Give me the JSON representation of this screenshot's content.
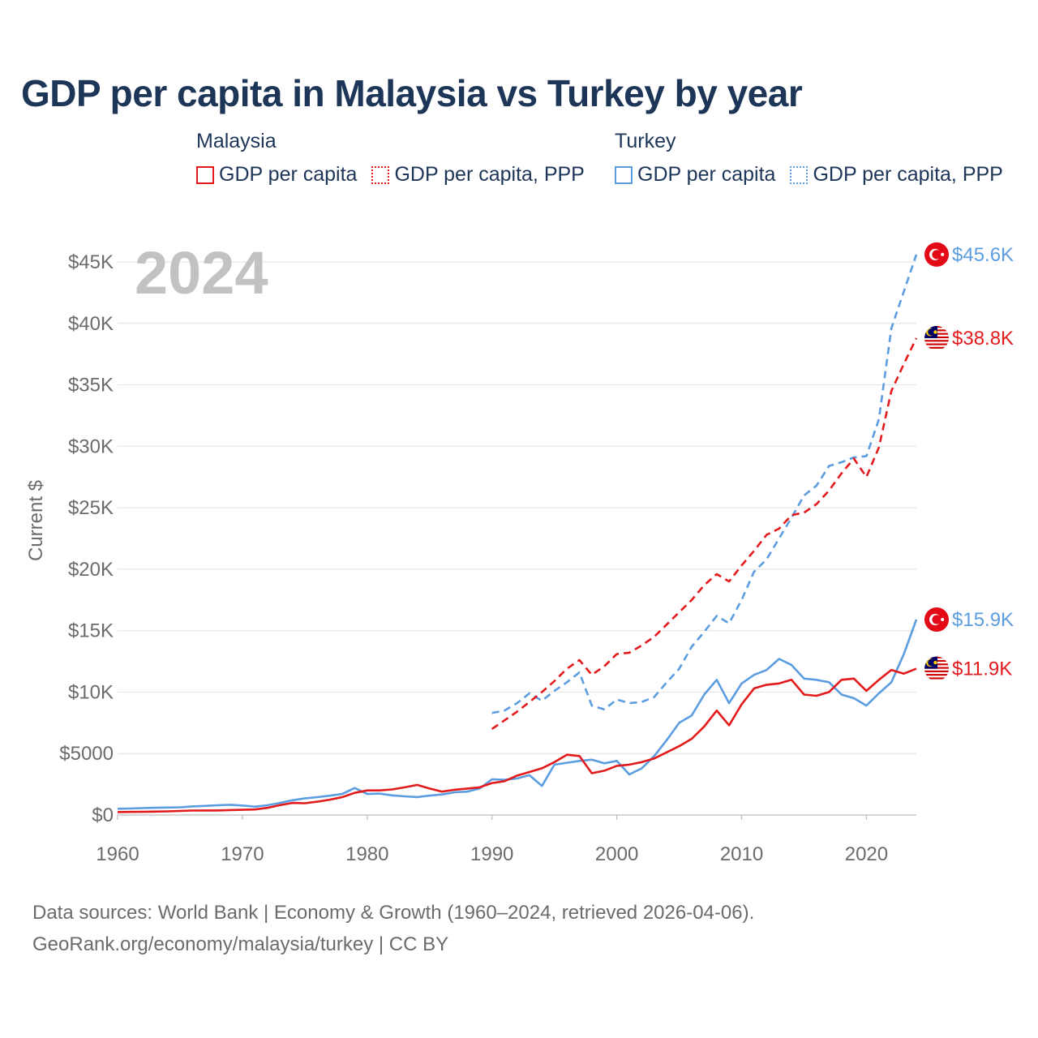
{
  "chart_data": {
    "type": "line",
    "title": "GDP per capita in Malaysia vs Turkey by year",
    "year_label": "2024",
    "ylabel": "Current $",
    "xlabel": "",
    "xlim": [
      1960,
      2024
    ],
    "ylim": [
      0,
      45000
    ],
    "x_ticks": [
      1960,
      1970,
      1980,
      1990,
      2000,
      2010,
      2020
    ],
    "y_ticks": [
      {
        "value": 0,
        "label": "$0"
      },
      {
        "value": 5000,
        "label": "$5000"
      },
      {
        "value": 10000,
        "label": "$10K"
      },
      {
        "value": 15000,
        "label": "$15K"
      },
      {
        "value": 20000,
        "label": "$20K"
      },
      {
        "value": 25000,
        "label": "$25K"
      },
      {
        "value": 30000,
        "label": "$30K"
      },
      {
        "value": 35000,
        "label": "$35K"
      },
      {
        "value": 40000,
        "label": "$40K"
      },
      {
        "value": 45000,
        "label": "$45K"
      }
    ],
    "grid": true,
    "legend": [
      {
        "country": "Malaysia",
        "items": [
          {
            "label": "GDP per capita",
            "color": "#e31a1c",
            "style": "solid"
          },
          {
            "label": "GDP per capita, PPP",
            "color": "#e31a1c",
            "style": "dotted"
          }
        ]
      },
      {
        "country": "Turkey",
        "items": [
          {
            "label": "GDP per capita",
            "color": "#5b9de0",
            "style": "solid"
          },
          {
            "label": "GDP per capita, PPP",
            "color": "#5b9de0",
            "style": "dotted"
          }
        ]
      }
    ],
    "series": [
      {
        "name": "Turkey GDP per capita, PPP",
        "country": "Turkey",
        "color": "#5b9de0",
        "dash": true,
        "end_label": "$45.6K",
        "flag": "turkey-flag-icon",
        "x": [
          1990,
          1991,
          1992,
          1993,
          1994,
          1995,
          1996,
          1997,
          1998,
          1999,
          2000,
          2001,
          2002,
          2003,
          2004,
          2005,
          2006,
          2007,
          2008,
          2009,
          2010,
          2011,
          2012,
          2013,
          2014,
          2015,
          2016,
          2017,
          2018,
          2019,
          2020,
          2021,
          2022,
          2023,
          2024
        ],
        "values": [
          8300,
          8500,
          9100,
          9900,
          9300,
          10100,
          10800,
          11600,
          8900,
          8600,
          9400,
          9100,
          9200,
          9600,
          10800,
          11900,
          13700,
          14900,
          16200,
          15600,
          17500,
          19800,
          20800,
          22500,
          24200,
          26000,
          26800,
          28400,
          28700,
          29100,
          29200,
          32200,
          39600,
          42600,
          45600
        ]
      },
      {
        "name": "Malaysia GDP per capita, PPP",
        "country": "Malaysia",
        "color": "#e31a1c",
        "dash": true,
        "end_label": "$38.8K",
        "flag": "malaysia-flag-icon",
        "x": [
          1990,
          1991,
          1992,
          1993,
          1994,
          1995,
          1996,
          1997,
          1998,
          1999,
          2000,
          2001,
          2002,
          2003,
          2004,
          2005,
          2006,
          2007,
          2008,
          2009,
          2010,
          2011,
          2012,
          2013,
          2014,
          2015,
          2016,
          2017,
          2018,
          2019,
          2020,
          2021,
          2022,
          2023,
          2024
        ],
        "values": [
          7000,
          7700,
          8400,
          9200,
          10000,
          10900,
          11900,
          12600,
          11400,
          12100,
          13100,
          13200,
          13800,
          14500,
          15500,
          16500,
          17500,
          18700,
          19600,
          19000,
          20300,
          21500,
          22800,
          23300,
          24400,
          24600,
          25300,
          26400,
          27800,
          29000,
          27500,
          29900,
          34500,
          36700,
          38800
        ]
      },
      {
        "name": "Turkey GDP per capita",
        "country": "Turkey",
        "color": "#5b9de0",
        "dash": false,
        "end_label": "$15.9K",
        "flag": "turkey-flag-icon",
        "x": [
          1960,
          1961,
          1962,
          1963,
          1964,
          1965,
          1966,
          1967,
          1968,
          1969,
          1970,
          1971,
          1972,
          1973,
          1974,
          1975,
          1976,
          1977,
          1978,
          1979,
          1980,
          1981,
          1982,
          1983,
          1984,
          1985,
          1986,
          1987,
          1988,
          1989,
          1990,
          1991,
          1992,
          1993,
          1994,
          1995,
          1996,
          1997,
          1998,
          1999,
          2000,
          2001,
          2002,
          2003,
          2004,
          2005,
          2006,
          2007,
          2008,
          2009,
          2010,
          2011,
          2012,
          2013,
          2014,
          2015,
          2016,
          2017,
          2018,
          2019,
          2020,
          2021,
          2022,
          2023,
          2024
        ],
        "values": [
          510,
          530,
          560,
          590,
          610,
          630,
          700,
          740,
          790,
          830,
          770,
          680,
          790,
          980,
          1200,
          1350,
          1450,
          1570,
          1710,
          2200,
          1710,
          1740,
          1600,
          1520,
          1460,
          1580,
          1670,
          1850,
          1900,
          2150,
          2900,
          2870,
          2970,
          3240,
          2360,
          4100,
          4250,
          4400,
          4500,
          4200,
          4400,
          3300,
          3800,
          4800,
          6100,
          7500,
          8100,
          9800,
          11000,
          9100,
          10700,
          11400,
          11800,
          12700,
          12200,
          11100,
          11000,
          10800,
          9800,
          9500,
          8900,
          9900,
          10800,
          13100,
          15900
        ]
      },
      {
        "name": "Malaysia GDP per capita",
        "country": "Malaysia",
        "color": "#e31a1c",
        "dash": false,
        "end_label": "$11.9K",
        "flag": "malaysia-flag-icon",
        "x": [
          1960,
          1961,
          1962,
          1963,
          1964,
          1965,
          1966,
          1967,
          1968,
          1969,
          1970,
          1971,
          1972,
          1973,
          1974,
          1975,
          1976,
          1977,
          1978,
          1979,
          1980,
          1981,
          1982,
          1983,
          1984,
          1985,
          1986,
          1987,
          1988,
          1989,
          1990,
          1991,
          1992,
          1993,
          1994,
          1995,
          1996,
          1997,
          1998,
          1999,
          2000,
          2001,
          2002,
          2003,
          2004,
          2005,
          2006,
          2007,
          2008,
          2009,
          2010,
          2011,
          2012,
          2013,
          2014,
          2015,
          2016,
          2017,
          2018,
          2019,
          2020,
          2021,
          2022,
          2023,
          2024
        ],
        "values": [
          240,
          250,
          260,
          280,
          300,
          330,
          360,
          370,
          370,
          400,
          420,
          450,
          580,
          800,
          980,
          960,
          1080,
          1250,
          1450,
          1800,
          2000,
          2000,
          2080,
          2250,
          2450,
          2150,
          1900,
          2050,
          2150,
          2250,
          2600,
          2750,
          3200,
          3500,
          3800,
          4300,
          4900,
          4800,
          3400,
          3600,
          4000,
          4100,
          4300,
          4600,
          5100,
          5600,
          6200,
          7200,
          8500,
          7300,
          9000,
          10300,
          10600,
          10700,
          11000,
          9800,
          9700,
          10000,
          11000,
          11100,
          10100,
          11000,
          11800,
          11500,
          11900
        ]
      }
    ]
  },
  "source": {
    "line1": "Data sources: World Bank | Economy & Growth (1960–2024, retrieved 2026-04-06).",
    "line2": "GeoRank.org/economy/malaysia/turkey | CC BY"
  }
}
